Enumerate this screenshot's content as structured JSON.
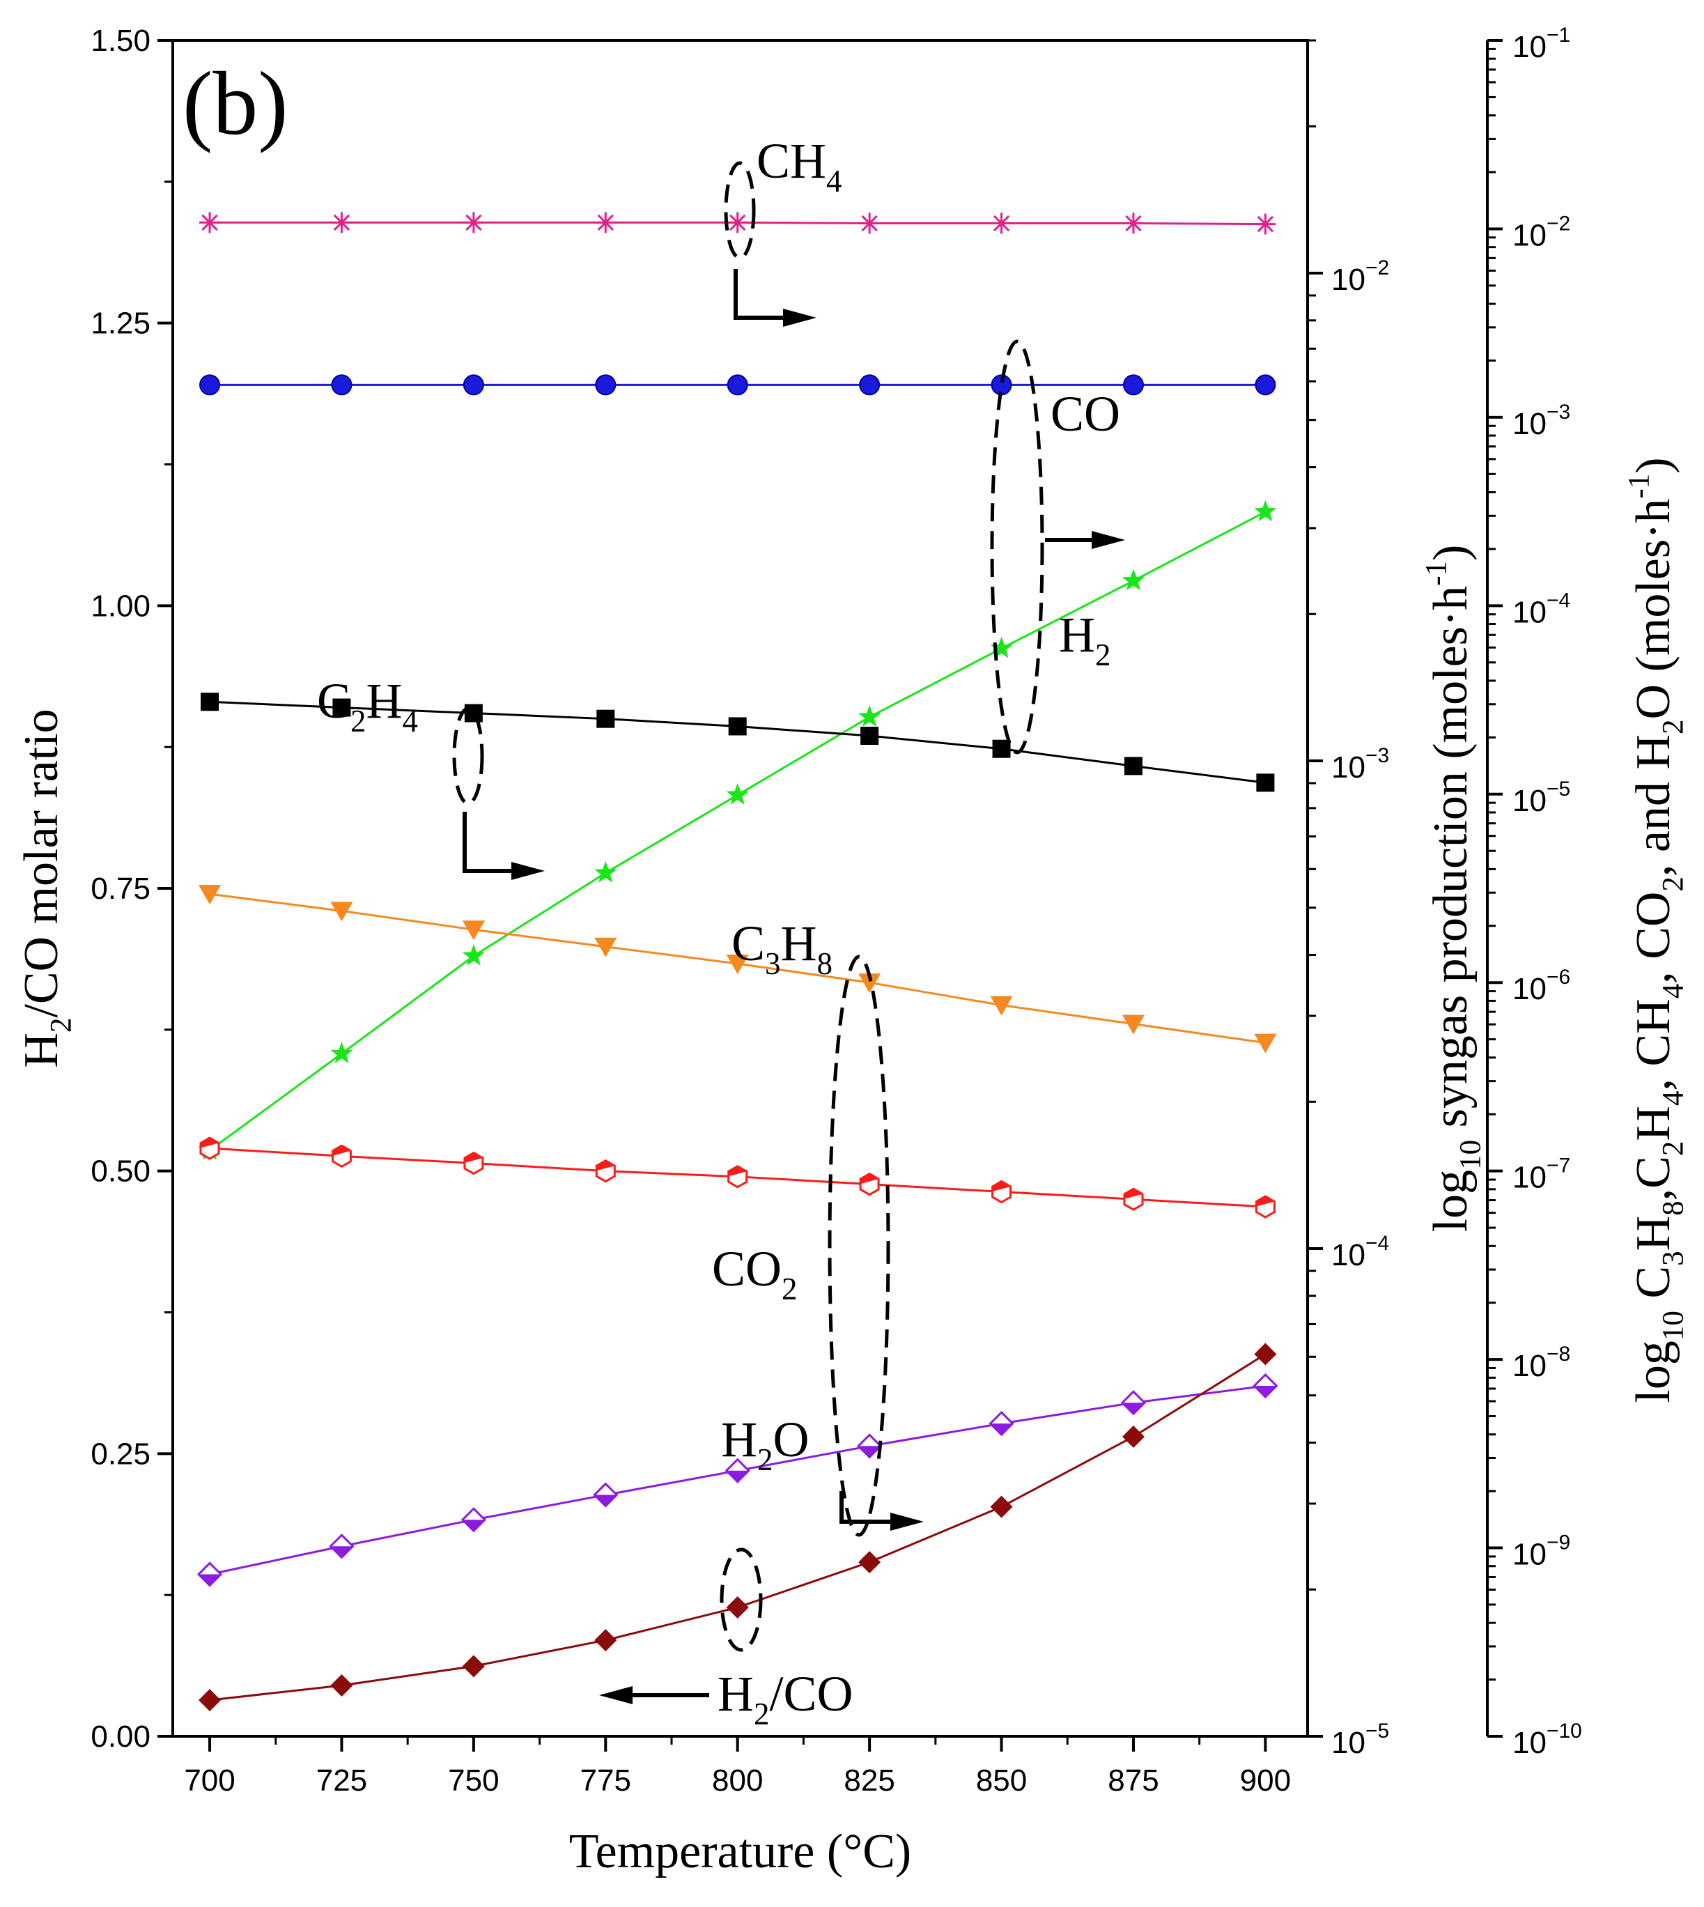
{
  "chart_data": {
    "type": "line",
    "panel_label": "(b)",
    "x": [
      700,
      725,
      750,
      775,
      800,
      825,
      850,
      875,
      900
    ],
    "xlabel": "Temperature (°C)",
    "xlim": [
      693,
      908
    ],
    "xticks": [
      700,
      725,
      750,
      775,
      800,
      825,
      850,
      875,
      900
    ],
    "axes": {
      "left": {
        "label_parts": [
          [
            "H",
            ""
          ],
          [
            "2",
            "sub"
          ],
          [
            "/CO molar ratio",
            ""
          ]
        ],
        "ylim": [
          0,
          1.5
        ],
        "ticks": [
          "0.00",
          "0.25",
          "0.50",
          "0.75",
          "1.00",
          "1.25",
          "1.50"
        ],
        "tick_values": [
          0,
          0.25,
          0.5,
          0.75,
          1.0,
          1.25,
          1.5
        ]
      },
      "right1": {
        "label_parts": [
          [
            "log",
            ""
          ],
          [
            "10",
            "sub"
          ],
          [
            " syngas production (moles·h",
            ""
          ],
          [
            "-1",
            "sup"
          ],
          [
            ")",
            ""
          ]
        ],
        "scale": "log",
        "ylim": [
          1e-05,
          0.03
        ],
        "ticks": [
          {
            "base": "10",
            "exp": "−5",
            "value": 1e-05
          },
          {
            "base": "10",
            "exp": "−4",
            "value": 0.0001
          },
          {
            "base": "10",
            "exp": "−3",
            "value": 0.001
          },
          {
            "base": "10",
            "exp": "−2",
            "value": 0.01
          }
        ]
      },
      "right2": {
        "label_parts": [
          [
            "log",
            ""
          ],
          [
            "10",
            "sub"
          ],
          [
            " C",
            ""
          ],
          [
            "3",
            "sub"
          ],
          [
            "H",
            ""
          ],
          [
            "8",
            "sub"
          ],
          [
            ",C",
            ""
          ],
          [
            "2",
            "sub"
          ],
          [
            "H",
            ""
          ],
          [
            "4",
            "sub"
          ],
          [
            ", CH",
            ""
          ],
          [
            "4",
            "sub"
          ],
          [
            ", CO",
            ""
          ],
          [
            "2",
            "sub"
          ],
          [
            ", and H",
            ""
          ],
          [
            "2",
            "sub"
          ],
          [
            "O (moles·h",
            ""
          ],
          [
            "-1",
            "sup"
          ],
          [
            ")",
            ""
          ]
        ],
        "scale": "log",
        "ylim": [
          1e-10,
          0.1
        ],
        "ticks": [
          {
            "base": "10",
            "exp": "−10",
            "value": 1e-10
          },
          {
            "base": "10",
            "exp": "−9",
            "value": 1e-09
          },
          {
            "base": "10",
            "exp": "−8",
            "value": 1e-08
          },
          {
            "base": "10",
            "exp": "−7",
            "value": 1e-07
          },
          {
            "base": "10",
            "exp": "−6",
            "value": 1e-06
          },
          {
            "base": "10",
            "exp": "−5",
            "value": 1e-05
          },
          {
            "base": "10",
            "exp": "−4",
            "value": 0.0001
          },
          {
            "base": "10",
            "exp": "−3",
            "value": 0.001
          },
          {
            "base": "10",
            "exp": "−2",
            "value": 0.01
          },
          {
            "base": "10",
            "exp": "−1",
            "value": 0.1
          }
        ]
      }
    },
    "series": [
      {
        "name": "CH4",
        "label_parts": [
          [
            "CH",
            ""
          ],
          [
            "4",
            "sub"
          ]
        ],
        "axis": "right2",
        "color": "#e0218a",
        "marker": "asterisk",
        "values": [
          0.0108,
          0.0108,
          0.0108,
          0.0108,
          0.0108,
          0.0107,
          0.0107,
          0.0107,
          0.0106
        ]
      },
      {
        "name": "CO",
        "label_parts": [
          [
            "CO",
            ""
          ]
        ],
        "axis": "right1",
        "color": "#1a1adb",
        "marker": "circle",
        "values": [
          0.0059,
          0.0059,
          0.0059,
          0.0059,
          0.0059,
          0.0059,
          0.0059,
          0.0059,
          0.0059
        ]
      },
      {
        "name": "H2",
        "label_parts": [
          [
            "H",
            ""
          ],
          [
            "2",
            "sub"
          ]
        ],
        "axis": "right1",
        "color": "#19e619",
        "marker": "star",
        "values": [
          0.000159,
          0.000251,
          0.000398,
          0.000589,
          0.000851,
          0.00123,
          0.0017,
          0.00234,
          0.00324
        ]
      },
      {
        "name": "C2H4",
        "label_parts": [
          [
            "C",
            ""
          ],
          [
            "2",
            "sub"
          ],
          [
            "H",
            ""
          ],
          [
            "4",
            "sub"
          ]
        ],
        "axis": "right2",
        "color": "#000000",
        "marker": "square",
        "values": [
          3.09e-05,
          2.88e-05,
          2.69e-05,
          2.51e-05,
          2.29e-05,
          2.04e-05,
          1.74e-05,
          1.41e-05,
          1.15e-05
        ]
      },
      {
        "name": "C3H8",
        "label_parts": [
          [
            "C",
            ""
          ],
          [
            "3",
            "sub"
          ],
          [
            "H",
            ""
          ],
          [
            "8",
            "sub"
          ]
        ],
        "axis": "right2",
        "color": "#f5891f",
        "marker": "triangle-down",
        "values": [
          2.95e-06,
          2.4e-06,
          1.91e-06,
          1.55e-06,
          1.26e-06,
          1e-06,
          7.59e-07,
          6.03e-07,
          4.79e-07
        ]
      },
      {
        "name": "CO2",
        "label_parts": [
          [
            "CO",
            ""
          ],
          [
            "2",
            "sub"
          ]
        ],
        "axis": "right2",
        "color": "#ff1a1a",
        "marker": "hexagon-half",
        "values": [
          1.32e-07,
          1.2e-07,
          1.1e-07,
          1e-07,
          9.33e-08,
          8.51e-08,
          7.76e-08,
          7.08e-08,
          6.46e-08
        ]
      },
      {
        "name": "H2O",
        "label_parts": [
          [
            "H",
            ""
          ],
          [
            "2",
            "sub"
          ],
          [
            "O",
            ""
          ]
        ],
        "axis": "right2",
        "color": "#8c1ae0",
        "marker": "diamond-half",
        "values": [
          7.24e-10,
          1.02e-09,
          1.41e-09,
          1.91e-09,
          2.57e-09,
          3.47e-09,
          4.57e-09,
          5.89e-09,
          7.24e-09
        ]
      },
      {
        "name": "H2/CO",
        "label_parts": [
          [
            "H",
            ""
          ],
          [
            "2",
            "sub"
          ],
          [
            "/CO",
            ""
          ]
        ],
        "axis": "left",
        "color": "#8b0a0a",
        "marker": "diamond",
        "values": [
          0.032,
          0.045,
          0.062,
          0.085,
          0.114,
          0.154,
          0.203,
          0.265,
          0.338
        ]
      }
    ]
  }
}
